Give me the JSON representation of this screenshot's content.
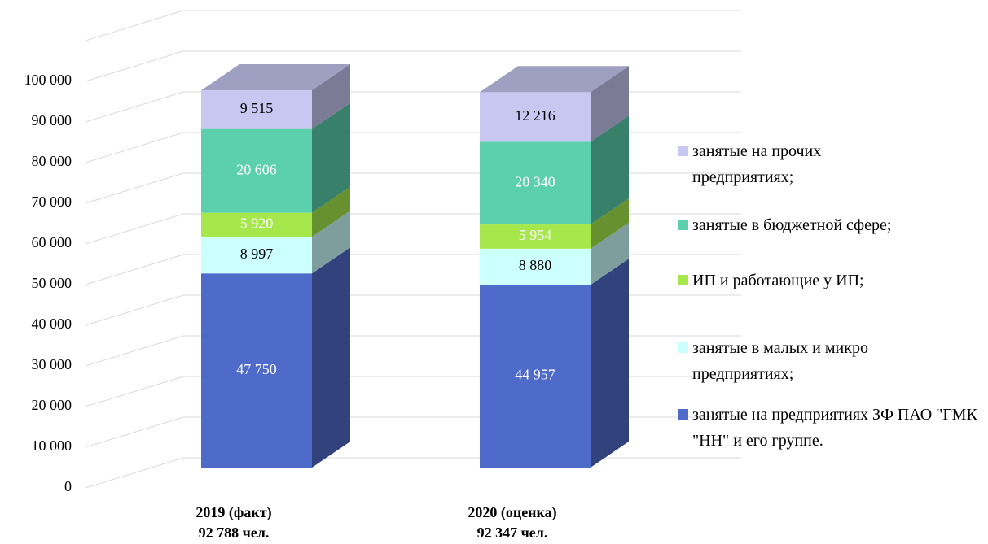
{
  "chart_data": {
    "type": "bar3d_stacked",
    "categories": [
      "2019 (факт)",
      "2020 (оценка)"
    ],
    "category_subtitles": [
      "92 788 чел.",
      "92 347 чел."
    ],
    "series": [
      {
        "name": "занятые на предприятиях ЗФ ПАО \"ГМК \"НН\" и его группе.",
        "color": "#4f6bc9",
        "values": [
          47750,
          44957
        ],
        "value_labels": [
          "47 750",
          "44 957"
        ]
      },
      {
        "name": "занятые в малых и микро предприятиях;",
        "color": "#ccffff",
        "values": [
          8997,
          8880
        ],
        "value_labels": [
          "8 997",
          "8 880"
        ]
      },
      {
        "name": "ИП и работающие у ИП;",
        "color": "#a6e84c",
        "values": [
          5920,
          5954
        ],
        "value_labels": [
          "5 920",
          "5 954"
        ]
      },
      {
        "name": "занятые в бюджетной сфере;",
        "color": "#5ccfad",
        "values": [
          20606,
          20340
        ],
        "value_labels": [
          "20 606",
          "20 340"
        ]
      },
      {
        "name": "занятые на прочих предприятиях;",
        "color": "#c7c7f2",
        "values": [
          9515,
          12216
        ],
        "value_labels": [
          "9 515",
          "12 216"
        ]
      }
    ],
    "ylim": [
      0,
      110000
    ],
    "yticks": [
      0,
      {
        "value": 10000,
        "label": "10 000"
      },
      {
        "value": 20000,
        "label": "20 000"
      },
      {
        "value": 30000,
        "label": "30 000"
      },
      {
        "value": 40000,
        "label": "40 000"
      },
      {
        "value": 50000,
        "label": "50 000"
      },
      {
        "value": 60000,
        "label": "60 000"
      },
      {
        "value": 70000,
        "label": "70 000"
      },
      {
        "value": 80000,
        "label": "80 000"
      },
      {
        "value": 90000,
        "label": "90 000"
      },
      {
        "value": 100000,
        "label": "100 000"
      }
    ],
    "grid": true,
    "legend": "right"
  }
}
